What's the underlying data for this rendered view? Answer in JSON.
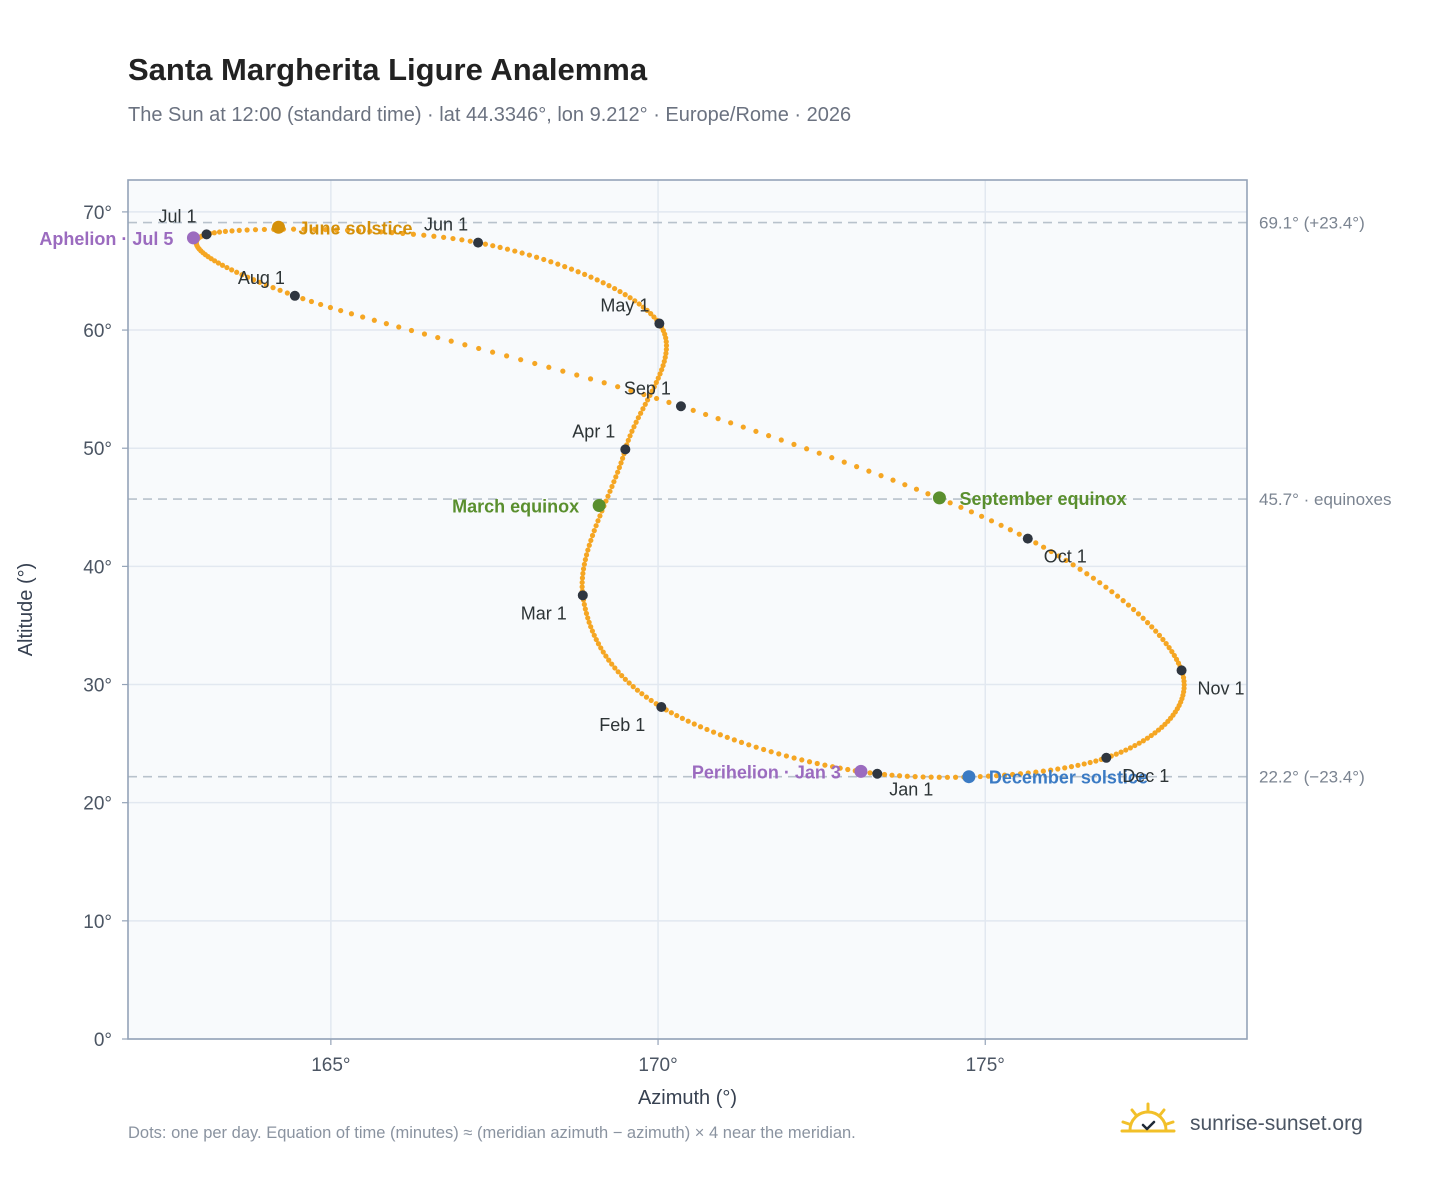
{
  "header": {
    "title": "Santa Margherita Ligure Analemma",
    "subtitle": "The Sun at 12:00 (standard time) · lat 44.3346°, lon 9.212° · Europe/Rome · 2026"
  },
  "footer": {
    "note": "Dots: one per day. Equation of time (minutes) ≈ (meridian azimuth − azimuth) × 4 near the meridian.",
    "brand": "sunrise-sunset.org"
  },
  "colors": {
    "path": "#f5a623",
    "month_dot": "#2f3640",
    "june_solstice": "#d4900a",
    "december_solstice": "#3b7bc4",
    "equinox": "#5a8f2e",
    "apsis": "#9b6bbf",
    "plot_bg": "#f8fafc",
    "grid": "#e2e8f0",
    "frame": "#94a3b8",
    "ref_line": "#b8c2cc"
  },
  "chart_data": {
    "type": "scatter",
    "xlabel": "Azimuth (°)",
    "ylabel": "Altitude (°)",
    "xlim": [
      161.9,
      179.0
    ],
    "ylim": [
      0,
      72.7
    ],
    "x_ticks": [
      "165°",
      "170°",
      "175°"
    ],
    "x_tick_values": [
      165,
      170,
      175
    ],
    "y_ticks": [
      "0°",
      "10°",
      "20°",
      "30°",
      "40°",
      "50°",
      "60°",
      "70°"
    ],
    "y_tick_values": [
      0,
      10,
      20,
      30,
      40,
      50,
      60,
      70
    ],
    "grid": true,
    "reference_lines": [
      {
        "y": 69.1,
        "label": "69.1° (+23.4°)"
      },
      {
        "y": 45.7,
        "label": "45.7° · equinoxes"
      },
      {
        "y": 22.2,
        "label": "22.2° (−23.4°)"
      }
    ],
    "monthly_points": [
      {
        "label": "Jan 1",
        "az": 173.35,
        "alt": 22.45,
        "label_pos": "below"
      },
      {
        "label": "Feb 1",
        "az": 170.05,
        "alt": 28.1,
        "label_pos": "below-left"
      },
      {
        "label": "Mar 1",
        "az": 168.85,
        "alt": 37.55,
        "label_pos": "below-left"
      },
      {
        "label": "Apr 1",
        "az": 169.5,
        "alt": 49.9,
        "label_pos": "above-left"
      },
      {
        "label": "May 1",
        "az": 170.02,
        "alt": 60.55,
        "label_pos": "above-left"
      },
      {
        "label": "Jun 1",
        "az": 167.25,
        "alt": 67.4,
        "label_pos": "above-left"
      },
      {
        "label": "Jul 1",
        "az": 163.1,
        "alt": 68.1,
        "label_pos": "above-left"
      },
      {
        "label": "Aug 1",
        "az": 164.45,
        "alt": 62.9,
        "label_pos": "above-left"
      },
      {
        "label": "Sep 1",
        "az": 170.35,
        "alt": 53.55,
        "label_pos": "above-left"
      },
      {
        "label": "Oct 1",
        "az": 175.65,
        "alt": 42.35,
        "label_pos": "below-right"
      },
      {
        "label": "Nov 1",
        "az": 178.0,
        "alt": 31.2,
        "label_pos": "below-right"
      },
      {
        "label": "Dec 1",
        "az": 176.85,
        "alt": 23.8,
        "label_pos": "below-right"
      }
    ],
    "events": [
      {
        "label": "June solstice",
        "az": 164.2,
        "alt": 68.7,
        "color_key": "june_solstice",
        "label_pos": "right"
      },
      {
        "label": "December solstice",
        "az": 174.75,
        "alt": 22.2,
        "color_key": "december_solstice",
        "label_pos": "right"
      },
      {
        "label": "March equinox",
        "az": 169.1,
        "alt": 45.15,
        "color_key": "equinox",
        "label_pos": "left"
      },
      {
        "label": "September equinox",
        "az": 174.3,
        "alt": 45.8,
        "color_key": "equinox",
        "label_pos": "right"
      },
      {
        "label": "Aphelion · Jul 5",
        "az": 162.9,
        "alt": 67.8,
        "color_key": "apsis",
        "label_pos": "left"
      },
      {
        "label": "Perihelion · Jan 3",
        "az": 173.1,
        "alt": 22.65,
        "color_key": "apsis",
        "label_pos": "left"
      }
    ]
  }
}
